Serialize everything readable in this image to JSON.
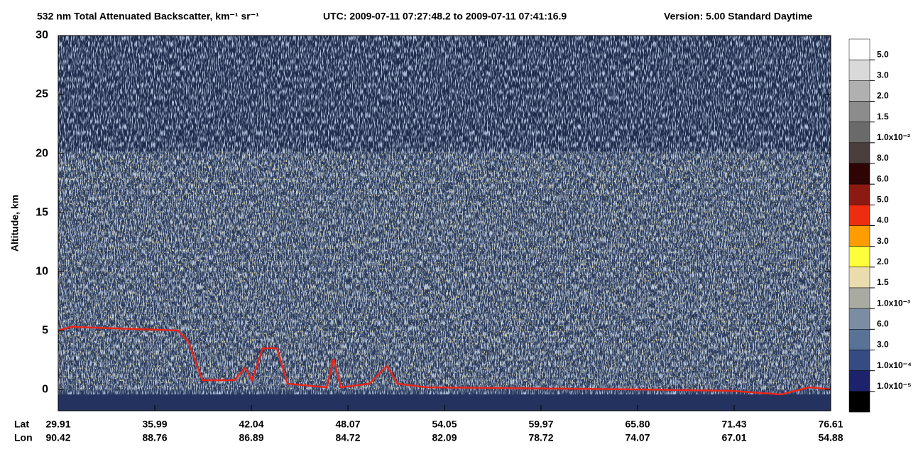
{
  "chart_data": {
    "type": "heatmap",
    "title": "532 nm Total Attenuated Backscatter, km⁻¹ sr⁻¹",
    "time_range": "UTC:  2009-07-11 07:27:48.2  to  2009-07-11 07:41:16.9",
    "version": "Version: 5.00  Standard  Daytime",
    "ylabel": "Altitude, km",
    "ylim": [
      -1.8,
      30
    ],
    "yticks": [
      0,
      5,
      10,
      15,
      20,
      25,
      30
    ],
    "row_labels": [
      "Lat",
      "Lon"
    ],
    "lat": [
      "29.91",
      "35.99",
      "42.04",
      "48.07",
      "54.05",
      "59.97",
      "65.80",
      "71.43",
      "76.61"
    ],
    "lon": [
      "90.42",
      "88.76",
      "86.89",
      "84.72",
      "82.09",
      "78.72",
      "74.07",
      "67.01",
      "54.88"
    ],
    "colorbar": {
      "colors": [
        "#ffffff",
        "#d9d9d9",
        "#b0b0b0",
        "#8c8c8c",
        "#6a6a6a",
        "#4a3f3c",
        "#2e0404",
        "#8c1a12",
        "#ee2c10",
        "#ff9c00",
        "#ffff3a",
        "#ebdcae",
        "#a9aba2",
        "#7a8da2",
        "#587396",
        "#344b84",
        "#1d226c",
        "#000000"
      ],
      "labels": [
        "5.0",
        "3.0",
        "2.0",
        "1.5",
        "1.0x10⁻²",
        "8.0",
        "6.0",
        "5.0",
        "4.0",
        "3.0",
        "2.0",
        "1.5",
        "1.0x10⁻³",
        "6.0",
        "3.0",
        "1.0x10⁻⁴",
        "1.0x10⁻⁵"
      ]
    }
  }
}
